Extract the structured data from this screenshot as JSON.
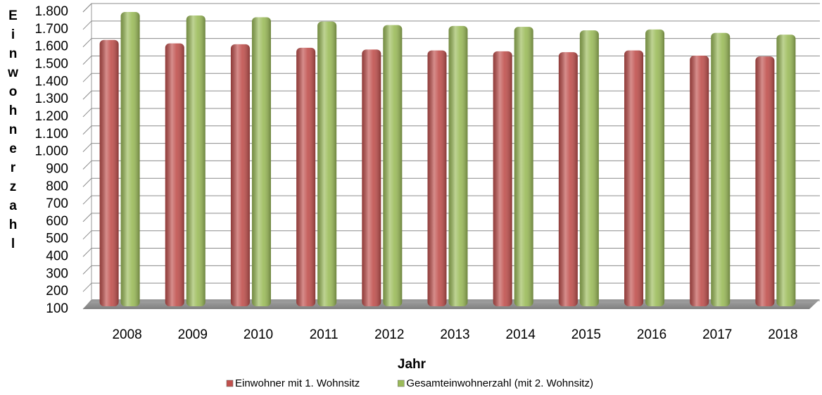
{
  "chart_data": {
    "type": "bar",
    "categories": [
      "2008",
      "2009",
      "2010",
      "2011",
      "2012",
      "2013",
      "2014",
      "2015",
      "2016",
      "2017",
      "2018"
    ],
    "series": [
      {
        "name": "Einwohner mit 1. Wohnsitz",
        "color": "#c0504d",
        "values": [
          1640,
          1620,
          1615,
          1595,
          1585,
          1580,
          1575,
          1570,
          1580,
          1550,
          1545
        ]
      },
      {
        "name": "Gesamteinwohnerzahl (mit 2. Wohnsitz)",
        "color": "#9bbb59",
        "values": [
          1800,
          1780,
          1770,
          1745,
          1725,
          1720,
          1715,
          1695,
          1700,
          1680,
          1670
        ]
      }
    ],
    "xlabel": "Jahr",
    "ylabel": "Einwohnerzahl",
    "ylim": [
      100,
      1800
    ],
    "yticks": [
      100,
      200,
      300,
      400,
      500,
      600,
      700,
      800,
      900,
      {
        "value": 1000,
        "label": "1.000"
      },
      {
        "value": 1100,
        "label": "1.100"
      },
      {
        "value": 1200,
        "label": "1.200"
      },
      {
        "value": 1300,
        "label": "1.300"
      },
      {
        "value": 1400,
        "label": "1.400"
      },
      {
        "value": 1500,
        "label": "1.500"
      },
      {
        "value": 1600,
        "label": "1.600"
      },
      {
        "value": 1700,
        "label": "1.700"
      },
      {
        "value": 1800,
        "label": "1.800"
      }
    ],
    "grid": true
  }
}
